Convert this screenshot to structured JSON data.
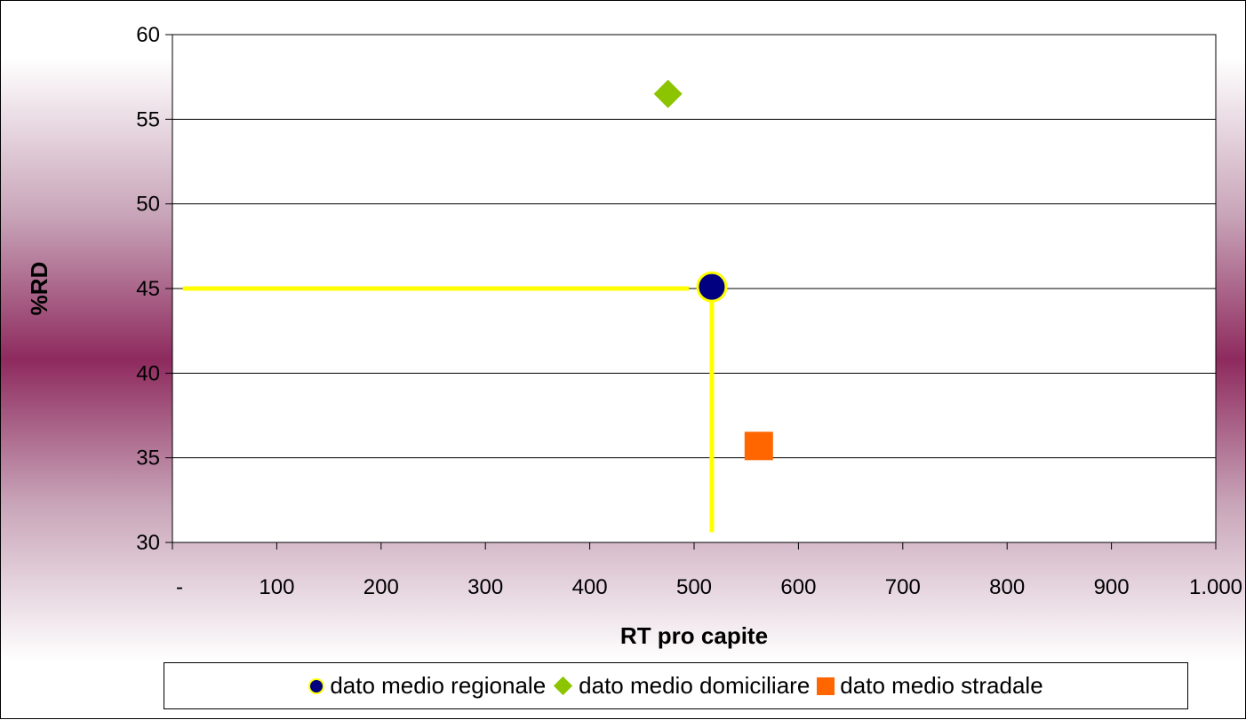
{
  "chart_data": {
    "type": "scatter",
    "title": "",
    "xlabel": "RT pro capite",
    "ylabel": "%RD",
    "xlim": [
      0,
      1000
    ],
    "ylim": [
      30,
      60
    ],
    "x_tick_labels": [
      "-",
      "100",
      "200",
      "300",
      "400",
      "500",
      "600",
      "700",
      "800",
      "900",
      "1.000"
    ],
    "x_tick_values": [
      0,
      100,
      200,
      300,
      400,
      500,
      600,
      700,
      800,
      900,
      1000
    ],
    "y_tick_labels": [
      "30",
      "35",
      "40",
      "45",
      "50",
      "55",
      "60"
    ],
    "y_tick_values": [
      30,
      35,
      40,
      45,
      50,
      55,
      60
    ],
    "grid": "horizontal",
    "legend_position": "bottom",
    "series": [
      {
        "name": "dato medio regionale",
        "marker": "circle",
        "color": "#000080",
        "edge_color": "#ffff00",
        "x": 517,
        "y": 45.1
      },
      {
        "name": "dato medio domiciliare",
        "marker": "diamond",
        "color": "#8cc400",
        "x": 475,
        "y": 56.5
      },
      {
        "name": "dato medio stradale",
        "marker": "square",
        "color": "#ff6600",
        "x": 562,
        "y": 35.7
      }
    ],
    "reference_lines": {
      "color": "#ffff00",
      "horizontal": {
        "y": 45,
        "x_from": 10,
        "x_to": 495
      },
      "vertical": {
        "x": 517,
        "y_from": 30.6,
        "y_to": 45
      }
    }
  },
  "legend": {
    "items": [
      {
        "label": "dato medio regionale"
      },
      {
        "label": "dato medio domiciliare"
      },
      {
        "label": "dato medio stradale"
      }
    ]
  }
}
